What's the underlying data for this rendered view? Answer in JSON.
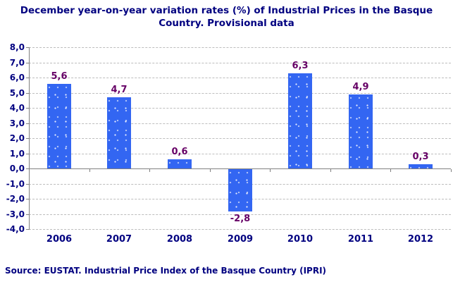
{
  "title": "December year-on-year variation rates (%) of Industrial Prices in the Basque Country. Provisional data",
  "source": "Source: EUSTAT. Industrial Price Index of the Basque Country (IPRI)",
  "colors": {
    "bar": "#3366f2",
    "title_text": "#000080",
    "axis_text": "#000080",
    "value_label_text": "#660066",
    "axis_line": "#808080",
    "gridline": "#bdbdbd",
    "background": "#ffffff"
  },
  "chart_data": {
    "type": "bar",
    "title": "December year-on-year variation rates (%) of Industrial Prices in the Basque Country. Provisional data",
    "categories": [
      "2006",
      "2007",
      "2008",
      "2009",
      "2010",
      "2011",
      "2012"
    ],
    "values": [
      5.6,
      4.7,
      0.6,
      -2.8,
      6.3,
      4.9,
      0.3
    ],
    "value_labels": [
      "5,6",
      "4,7",
      "0,6",
      "-2,8",
      "6,3",
      "4,9",
      "0,3"
    ],
    "xlabel": "",
    "ylabel": "",
    "ylim": [
      -4.0,
      8.0
    ],
    "ytick_step": 1.0,
    "ytick_labels": [
      "8,0",
      "7,0",
      "6,0",
      "5,0",
      "4,0",
      "3,0",
      "2,0",
      "1,0",
      "0,0",
      "-1,0",
      "-2,0",
      "-3,0",
      "-4,0"
    ],
    "ytick_values": [
      8,
      7,
      6,
      5,
      4,
      3,
      2,
      1,
      0,
      -1,
      -2,
      -3,
      -4
    ],
    "grid": "horizontal-dashed",
    "legend": "none",
    "bar_texture": "light-speckle-dots"
  }
}
